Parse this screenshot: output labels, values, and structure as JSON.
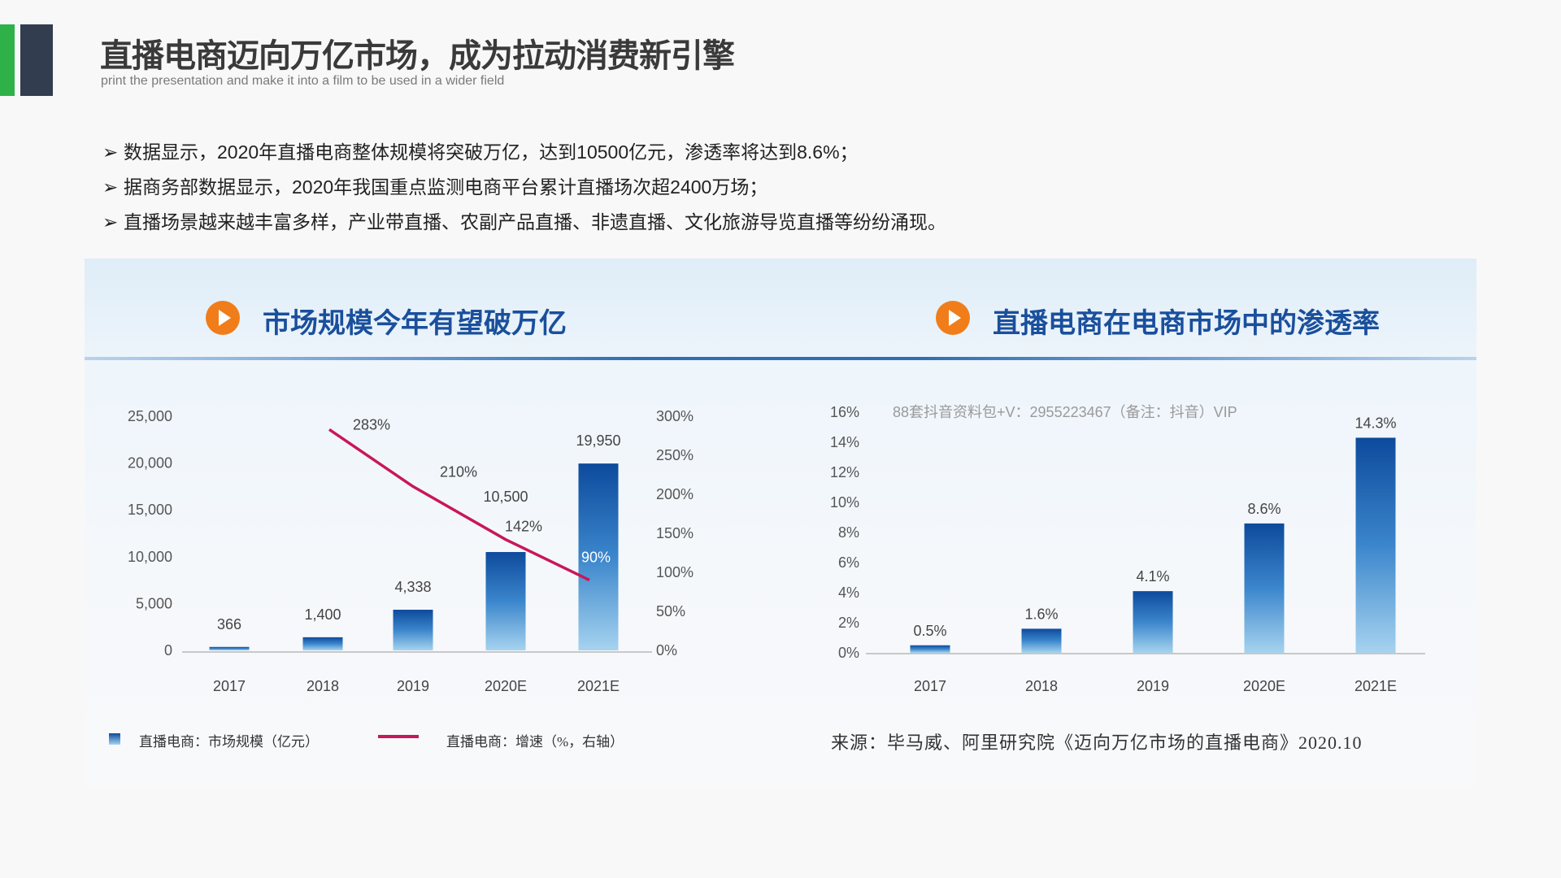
{
  "header": {
    "title": "直播电商迈向万亿市场，成为拉动消费新引擎",
    "subtitle": "print the presentation and make it into a film to be used in a wider field",
    "accent_colors": [
      "#2fb14a",
      "#323d4f"
    ]
  },
  "bullets": [
    "数据显示，2020年直播电商整体规模将突破万亿，达到10500亿元，渗透率将达到8.6%；",
    "据商务部数据显示，2020年我国重点监测电商平台累计直播场次超2400万场；",
    "直播场景越来越丰富多样，产业带直播、农副产品直播、非遗直播、文化旅游导览直播等纷纷涌现。"
  ],
  "bullet_icon": "arrowhead-icon",
  "panels": {
    "left_title": "市场规模今年有望破万亿",
    "right_title": "直播电商在电商市场中的渗透率",
    "title_icon": "play-icon"
  },
  "watermark": "88套抖音资料包+V：2955223467（备注：抖音）VIP",
  "source": "来源：毕马威、阿里研究院《迈向万亿市场的直播电商》2020.10",
  "chart_data": [
    {
      "type": "bar+line",
      "categories": [
        "2017",
        "2018",
        "2019",
        "2020E",
        "2021E"
      ],
      "series": [
        {
          "name": "直播电商：市场规模（亿元）",
          "type": "bar",
          "axis": "left",
          "values": [
            366,
            1400,
            4338,
            10500,
            19950
          ],
          "labels": [
            "366",
            "1,400",
            "4,338",
            "10,500",
            "19,950"
          ],
          "color": "#1b5fb0"
        },
        {
          "name": "直播电商：增速（%，右轴）",
          "type": "line",
          "axis": "right",
          "values": [
            null,
            283,
            210,
            142,
            90
          ],
          "labels": [
            "",
            "283%",
            "210%",
            "142%",
            "90%"
          ],
          "color": "#c8175a"
        }
      ],
      "left_axis": {
        "ylim": [
          0,
          25000
        ],
        "ticks": [
          "0",
          "5,000",
          "10,000",
          "15,000",
          "20,000",
          "25,000"
        ]
      },
      "right_axis": {
        "ylim": [
          0,
          300
        ],
        "ticks": [
          "0%",
          "50%",
          "100%",
          "150%",
          "200%",
          "250%",
          "300%"
        ]
      },
      "grid": false,
      "legend": "bottom"
    },
    {
      "type": "bar",
      "categories": [
        "2017",
        "2018",
        "2019",
        "2020E",
        "2021E"
      ],
      "values": [
        0.5,
        1.6,
        4.1,
        8.6,
        14.3
      ],
      "labels": [
        "0.5%",
        "1.6%",
        "4.1%",
        "8.6%",
        "14.3%"
      ],
      "ylim": [
        0,
        16
      ],
      "ticks": [
        "0%",
        "2%",
        "4%",
        "6%",
        "8%",
        "10%",
        "12%",
        "14%",
        "16%"
      ],
      "grid": false,
      "color": "#1b5fb0"
    }
  ]
}
